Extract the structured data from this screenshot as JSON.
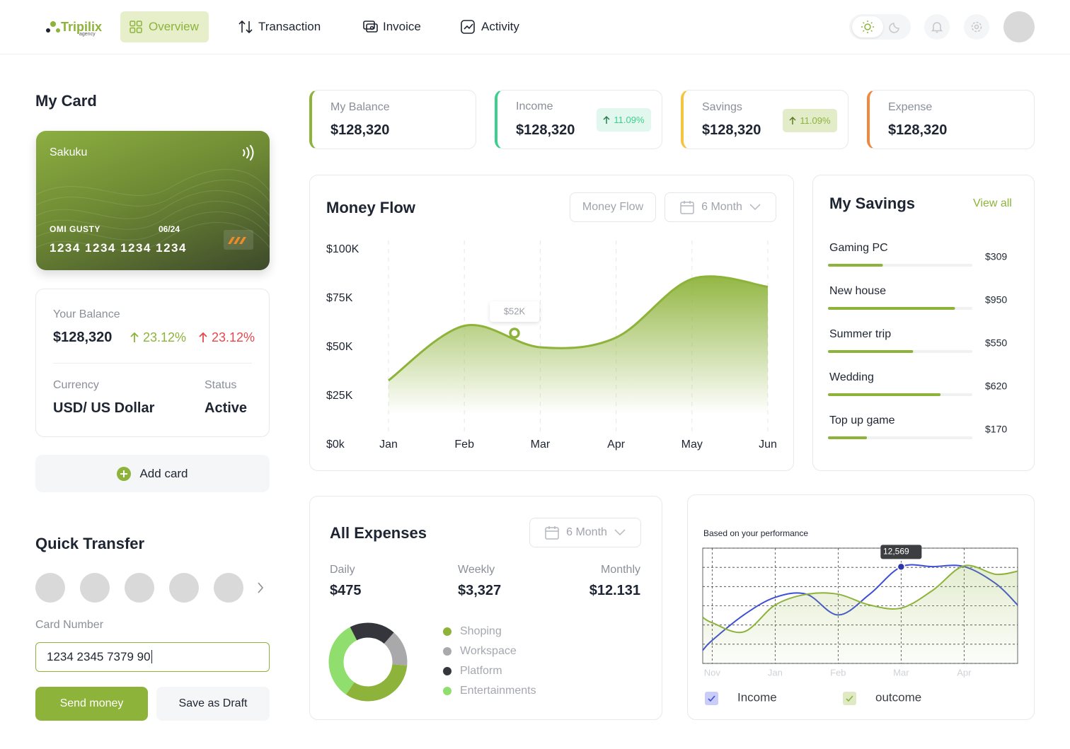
{
  "nav": {
    "logo": "Tripilix",
    "logo_sub": "agency",
    "items": [
      "Overview",
      "Transaction",
      "Invoice",
      "Activity"
    ]
  },
  "my_card": {
    "title": "My Card",
    "bank": "Sakuku",
    "holder": "OMI GUSTY",
    "expiry": "06/24",
    "number": "1234 1234 1234 1234"
  },
  "balance": {
    "label": "Your Balance",
    "value": "$128,320",
    "change_up": "23.12%",
    "change_down": "23.12%",
    "currency_label": "Currency",
    "currency": "USD/ US Dollar",
    "status_label": "Status",
    "status": "Active"
  },
  "add_card": "Add card",
  "quick_transfer": {
    "title": "Quick Transfer",
    "card_number_label": "Card Number",
    "card_number": "1234 2345 7379 90",
    "send": "Send money",
    "draft": "Save as Draft"
  },
  "stats": [
    {
      "label": "My Balance",
      "value": "$128,320"
    },
    {
      "label": "Income",
      "value": "$128,320",
      "change": "11.09%"
    },
    {
      "label": "Savings",
      "value": "$128,320",
      "change": "11.09%"
    },
    {
      "label": "Expense",
      "value": "$128,320"
    }
  ],
  "savings": {
    "title": "My Savings",
    "link": "View all",
    "items": [
      {
        "name": "Gaming PC",
        "amount": "$309",
        "progress": 38
      },
      {
        "name": "New house",
        "amount": "$950",
        "progress": 88
      },
      {
        "name": "Summer trip",
        "amount": "$550",
        "progress": 59
      },
      {
        "name": "Wedding",
        "amount": "$620",
        "progress": 78
      },
      {
        "name": "Top up game",
        "amount": "$170",
        "progress": 27
      }
    ]
  },
  "expenses": {
    "title": "All Expenses",
    "period": "6 Month",
    "stats": [
      {
        "label": "Daily",
        "value": "$475"
      },
      {
        "label": "Weekly",
        "value": "$3,327"
      },
      {
        "label": "Monthly",
        "value": "$12.131"
      }
    ]
  },
  "chart_data": [
    {
      "type": "area",
      "title": "Money Flow",
      "filter": "Money Flow",
      "period": "6 Month",
      "categories": [
        "Jan",
        "Feb",
        "Mar",
        "Apr",
        "May",
        "Jun"
      ],
      "values": [
        33000,
        61000,
        50000,
        55000,
        85000,
        81000
      ],
      "color": "#8db33a",
      "ylim": [
        0,
        100000
      ],
      "yticks": [
        {
          "value": 0,
          "label": "$0k"
        },
        {
          "value": 25000,
          "label": "$25K"
        },
        {
          "value": 50000,
          "label": "$50K"
        },
        {
          "value": 75000,
          "label": "$75K"
        },
        {
          "value": 100000,
          "label": "$100K"
        }
      ],
      "annotation": "$52K"
    },
    {
      "type": "donut",
      "categories": [
        "Shoping",
        "Workspace",
        "Platform",
        "Entertainments"
      ],
      "values": [
        33,
        15,
        19,
        33
      ],
      "colors": [
        "#8db33a",
        "#a9a9ab",
        "#34363b",
        "#8fde6e"
      ]
    },
    {
      "type": "line",
      "subtitle": "Based on your performance",
      "x": [
        -0.15,
        0,
        0.5,
        1,
        1.5,
        2,
        2.5,
        3,
        3.5,
        4,
        4.5,
        4.85
      ],
      "series": [
        {
          "name": "Income",
          "color": "#3e4fd6",
          "values": [
            1700,
            3000,
            6300,
            8600,
            9000,
            6300,
            9000,
            12569,
            12600,
            12600,
            10400,
            7600
          ]
        },
        {
          "name": "outcome",
          "color": "#8db33a",
          "values": [
            6000,
            5300,
            4100,
            7600,
            9000,
            9000,
            7600,
            7200,
            9500,
            12700,
            11600,
            12000
          ]
        }
      ],
      "xlim": [
        -0.15,
        4.85
      ],
      "xticks": [
        {
          "value": 0,
          "label": "Nov"
        },
        {
          "value": 1,
          "label": "Jan"
        },
        {
          "value": 2,
          "label": "Feb"
        },
        {
          "value": 3,
          "label": "Mar"
        },
        {
          "value": 4,
          "label": "Apr"
        }
      ],
      "ylim": [
        0,
        15000
      ],
      "yticks": [
        0,
        2500,
        5000,
        7500,
        10000,
        12500,
        15000
      ],
      "grid": true,
      "annotation": {
        "x": 3,
        "value": 12569,
        "label": "12,569"
      }
    }
  ]
}
